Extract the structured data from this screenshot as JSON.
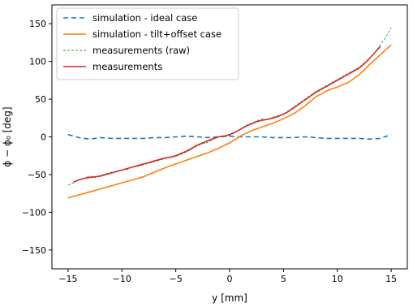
{
  "chart_data": {
    "type": "line",
    "xlabel": "y [mm]",
    "ylabel": "ϕ − ϕ₀ [deg]",
    "xlim": [
      -16.5,
      16.5
    ],
    "ylim": [
      -175,
      175
    ],
    "xticks": [
      -15,
      -10,
      -5,
      0,
      5,
      10,
      15
    ],
    "yticks": [
      -150,
      -100,
      -50,
      0,
      50,
      100,
      150
    ],
    "xtick_labels": [
      "−15",
      "−10",
      "−5",
      "0",
      "5",
      "10",
      "15"
    ],
    "ytick_labels": [
      "−150",
      "−100",
      "−50",
      "0",
      "50",
      "100",
      "150"
    ],
    "grid": false,
    "legend_position": "upper left",
    "series": [
      {
        "name": "simulation - ideal case",
        "color": "#1f77b4",
        "style": "dashed",
        "x": [
          -15,
          -14,
          -13,
          -12,
          -11,
          -10,
          -9,
          -8,
          -7,
          -6,
          -5,
          -4,
          -3,
          -2,
          -1,
          0,
          1,
          2,
          3,
          4,
          5,
          6,
          7,
          8,
          9,
          10,
          11,
          12,
          13,
          14,
          15
        ],
        "y": [
          3,
          -1,
          -3,
          -1,
          -2,
          -2,
          -2,
          -2,
          -1,
          -1,
          0,
          1,
          0,
          -1,
          0,
          1,
          0,
          0,
          0,
          -1,
          -1,
          -1,
          0,
          -1,
          -2,
          -2,
          -2,
          -2,
          -3,
          -2,
          3
        ]
      },
      {
        "name": "simulation - tilt+offset case",
        "color": "#ff7f0e",
        "style": "solid",
        "x": [
          -15,
          -14,
          -13,
          -12,
          -11,
          -10,
          -9,
          -8,
          -7,
          -6,
          -5,
          -4,
          -3,
          -2,
          -1,
          0,
          1,
          2,
          3,
          4,
          5,
          6,
          7,
          8,
          9,
          10,
          11,
          12,
          13,
          14,
          15
        ],
        "y": [
          -81,
          -77,
          -73,
          -69,
          -65,
          -61,
          -57,
          -53,
          -47,
          -41,
          -36,
          -31,
          -26,
          -21,
          -15,
          -8,
          1,
          8,
          13,
          18,
          24,
          31,
          41,
          53,
          61,
          66,
          72,
          82,
          96,
          109,
          122
        ]
      },
      {
        "name": "measurements (raw)",
        "color": "#2ca02c",
        "style": "dashed-thin",
        "x": [
          -15,
          -14.5,
          -14,
          -13.5,
          -13,
          -12.5,
          -12,
          -11.5,
          -11,
          -10.5,
          -10,
          -9.5,
          -9,
          -8.5,
          -8,
          -7.5,
          -7,
          -6.5,
          -6,
          -5.5,
          -5,
          -4.5,
          -4,
          -3.5,
          -3,
          -2.5,
          -2,
          -1.5,
          -1,
          -0.5,
          0,
          0.5,
          1,
          1.5,
          2,
          2.5,
          3,
          3.5,
          4,
          4.5,
          5,
          5.5,
          6,
          6.5,
          7,
          7.5,
          8,
          8.5,
          9,
          9.5,
          10,
          10.5,
          11,
          11.5,
          12,
          12.5,
          13,
          13.5,
          14,
          14.5,
          15
        ],
        "y": [
          -64,
          -61,
          -57,
          -55,
          -52,
          -54,
          -51,
          -49,
          -47,
          -46,
          -44,
          -43,
          -40,
          -39,
          -37,
          -35,
          -33,
          -31,
          -29,
          -27,
          -26,
          -23,
          -20,
          -16,
          -12,
          -9,
          -7,
          -3,
          0,
          2,
          1,
          6,
          10,
          15,
          18,
          21,
          24,
          23,
          26,
          28,
          30,
          35,
          40,
          45,
          50,
          55,
          60,
          64,
          68,
          72,
          76,
          80,
          84,
          88,
          92,
          98,
          104,
          112,
          122,
          132,
          145
        ]
      },
      {
        "name": "measurements",
        "color": "#d62728",
        "style": "solid",
        "x": [
          -14.5,
          -14,
          -13.5,
          -13,
          -12.5,
          -12,
          -11.5,
          -11,
          -10.5,
          -10,
          -9.5,
          -9,
          -8.5,
          -8,
          -7.5,
          -7,
          -6.5,
          -6,
          -5.5,
          -5,
          -4.5,
          -4,
          -3.5,
          -3,
          -2.5,
          -2,
          -1.5,
          -1,
          -0.5,
          0,
          0.5,
          1,
          1.5,
          2,
          2.5,
          3,
          3.5,
          4,
          4.5,
          5,
          5.5,
          6,
          6.5,
          7,
          7.5,
          8,
          8.5,
          9,
          9.5,
          10,
          10.5,
          11,
          11.5,
          12,
          12.5,
          13,
          13.5,
          14
        ],
        "y": [
          -60,
          -57,
          -55,
          -54,
          -53,
          -52,
          -50,
          -48,
          -46,
          -44,
          -42,
          -40,
          -38,
          -36,
          -34,
          -32,
          -30,
          -28,
          -27,
          -25,
          -22,
          -19,
          -15,
          -11,
          -8,
          -5,
          -2,
          0,
          1,
          3,
          6,
          10,
          14,
          17,
          20,
          22,
          23,
          25,
          27,
          30,
          34,
          39,
          44,
          49,
          54,
          59,
          63,
          67,
          71,
          75,
          79,
          83,
          87,
          91,
          97,
          104,
          112,
          120
        ]
      }
    ]
  }
}
